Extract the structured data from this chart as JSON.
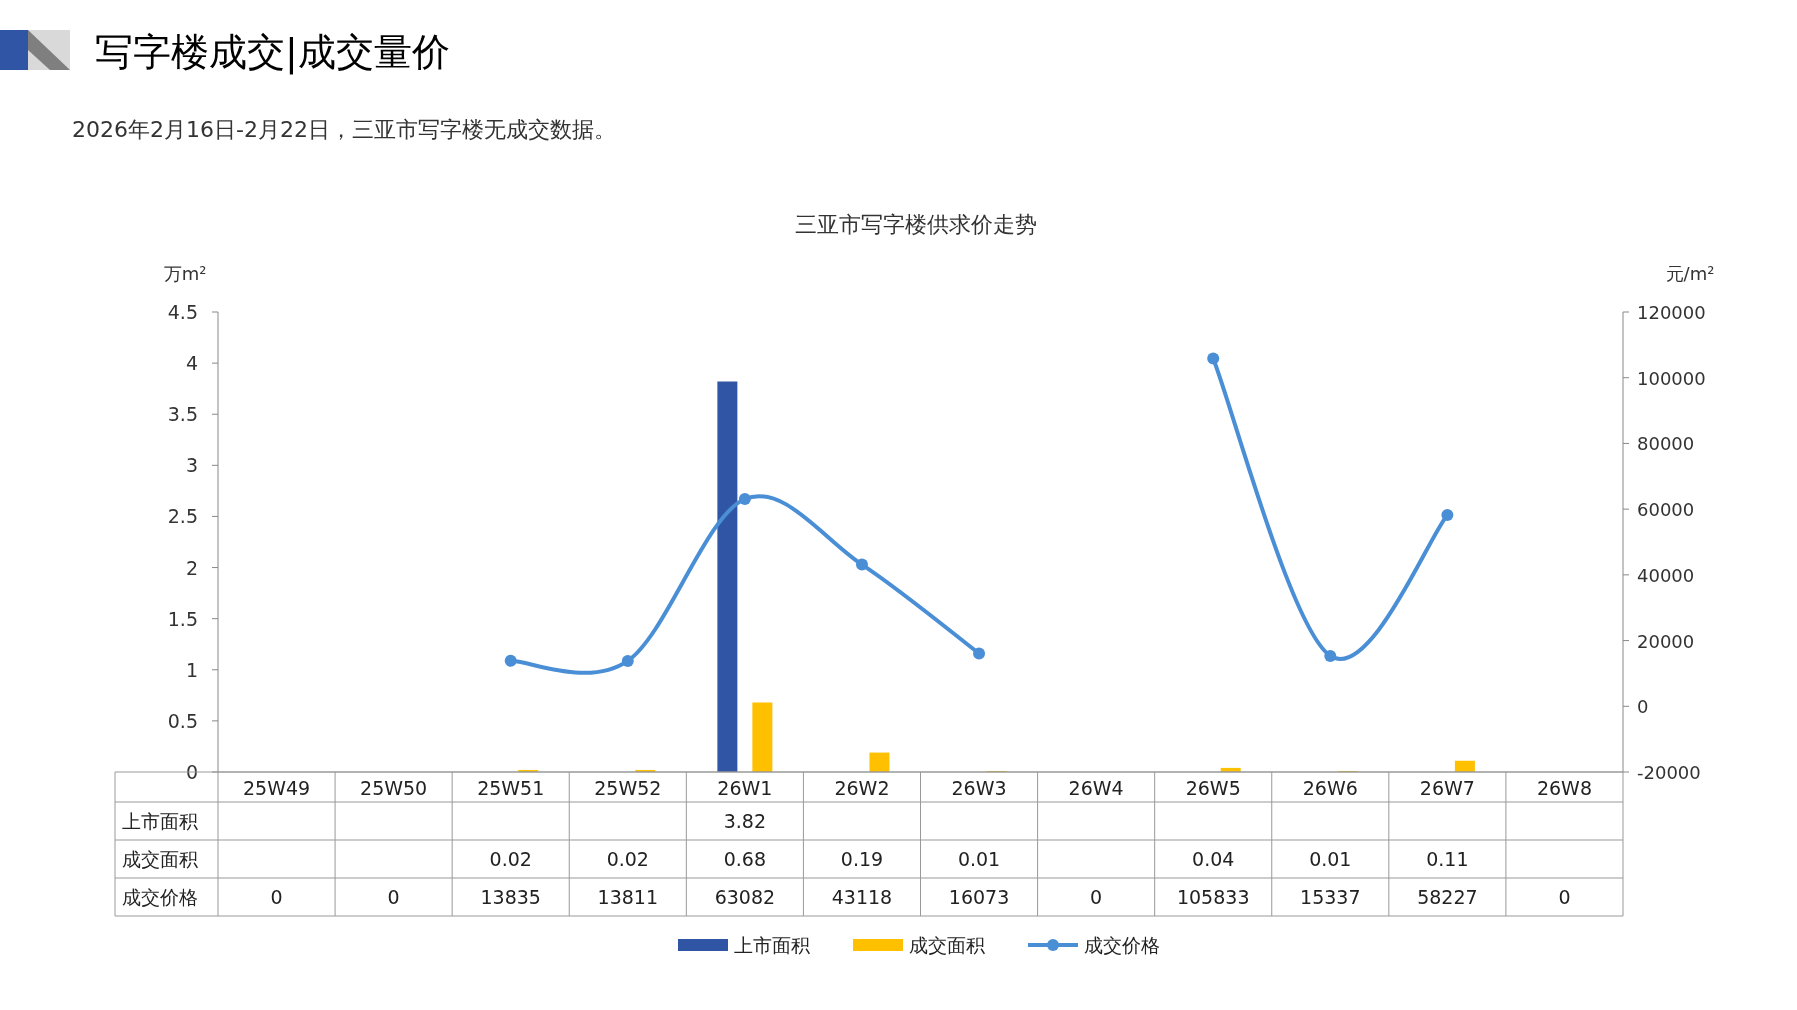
{
  "chart_data": {
    "type": "bar",
    "title": "三亚市写字楼供求价走势",
    "annotations": [
      "写字楼成交|成交量价",
      "2026年2月16日-2月22日，三亚市写字楼无成交数据。"
    ],
    "ylabel": "万m²",
    "y2label": "元/m²",
    "categories": [
      "25W49",
      "25W50",
      "25W51",
      "25W52",
      "26W1",
      "26W2",
      "26W3",
      "26W4",
      "26W5",
      "26W6",
      "26W7",
      "26W8"
    ],
    "series": [
      {
        "name": "上市面积",
        "color": "#2f55a4",
        "values": [
          null,
          null,
          null,
          null,
          3.82,
          null,
          null,
          null,
          null,
          null,
          null,
          null
        ],
        "value_labels": [
          null,
          null,
          null,
          null,
          "3.82",
          null,
          null,
          null,
          null,
          null,
          null,
          null
        ]
      },
      {
        "name": "成交面积",
        "color": "#ffc000",
        "values": [
          null,
          null,
          0.02,
          0.02,
          0.68,
          0.19,
          0.01,
          null,
          0.04,
          0.01,
          0.11,
          null
        ],
        "value_labels": [
          null,
          null,
          "0.02",
          "0.02",
          "0.68",
          "0.19",
          "0.01",
          null,
          "0.04",
          "0.01",
          "0.11",
          null
        ]
      },
      {
        "name": "成交价格",
        "type": "line",
        "axis": "y2",
        "color": "#4a8fd6",
        "marker": "circle",
        "line_style": "solid",
        "values": [
          null,
          null,
          13835,
          13811,
          63082,
          43118,
          16073,
          null,
          105833,
          15337,
          58227,
          null
        ],
        "value_labels": [
          "0",
          "0",
          "13835",
          "13811",
          "63082",
          "43118",
          "16073",
          "0",
          "105833",
          "15337",
          "58227",
          "0"
        ]
      }
    ],
    "ylim": [
      0,
      4.5
    ],
    "yticks": [
      0,
      0.5,
      1,
      1.5,
      2,
      2.5,
      3,
      3.5,
      4,
      4.5
    ],
    "y2lim": [
      -20000,
      120000
    ],
    "y2ticks": [
      -20000,
      0,
      20000,
      40000,
      60000,
      80000,
      100000,
      120000
    ],
    "grid": false,
    "legend": "bottom"
  }
}
